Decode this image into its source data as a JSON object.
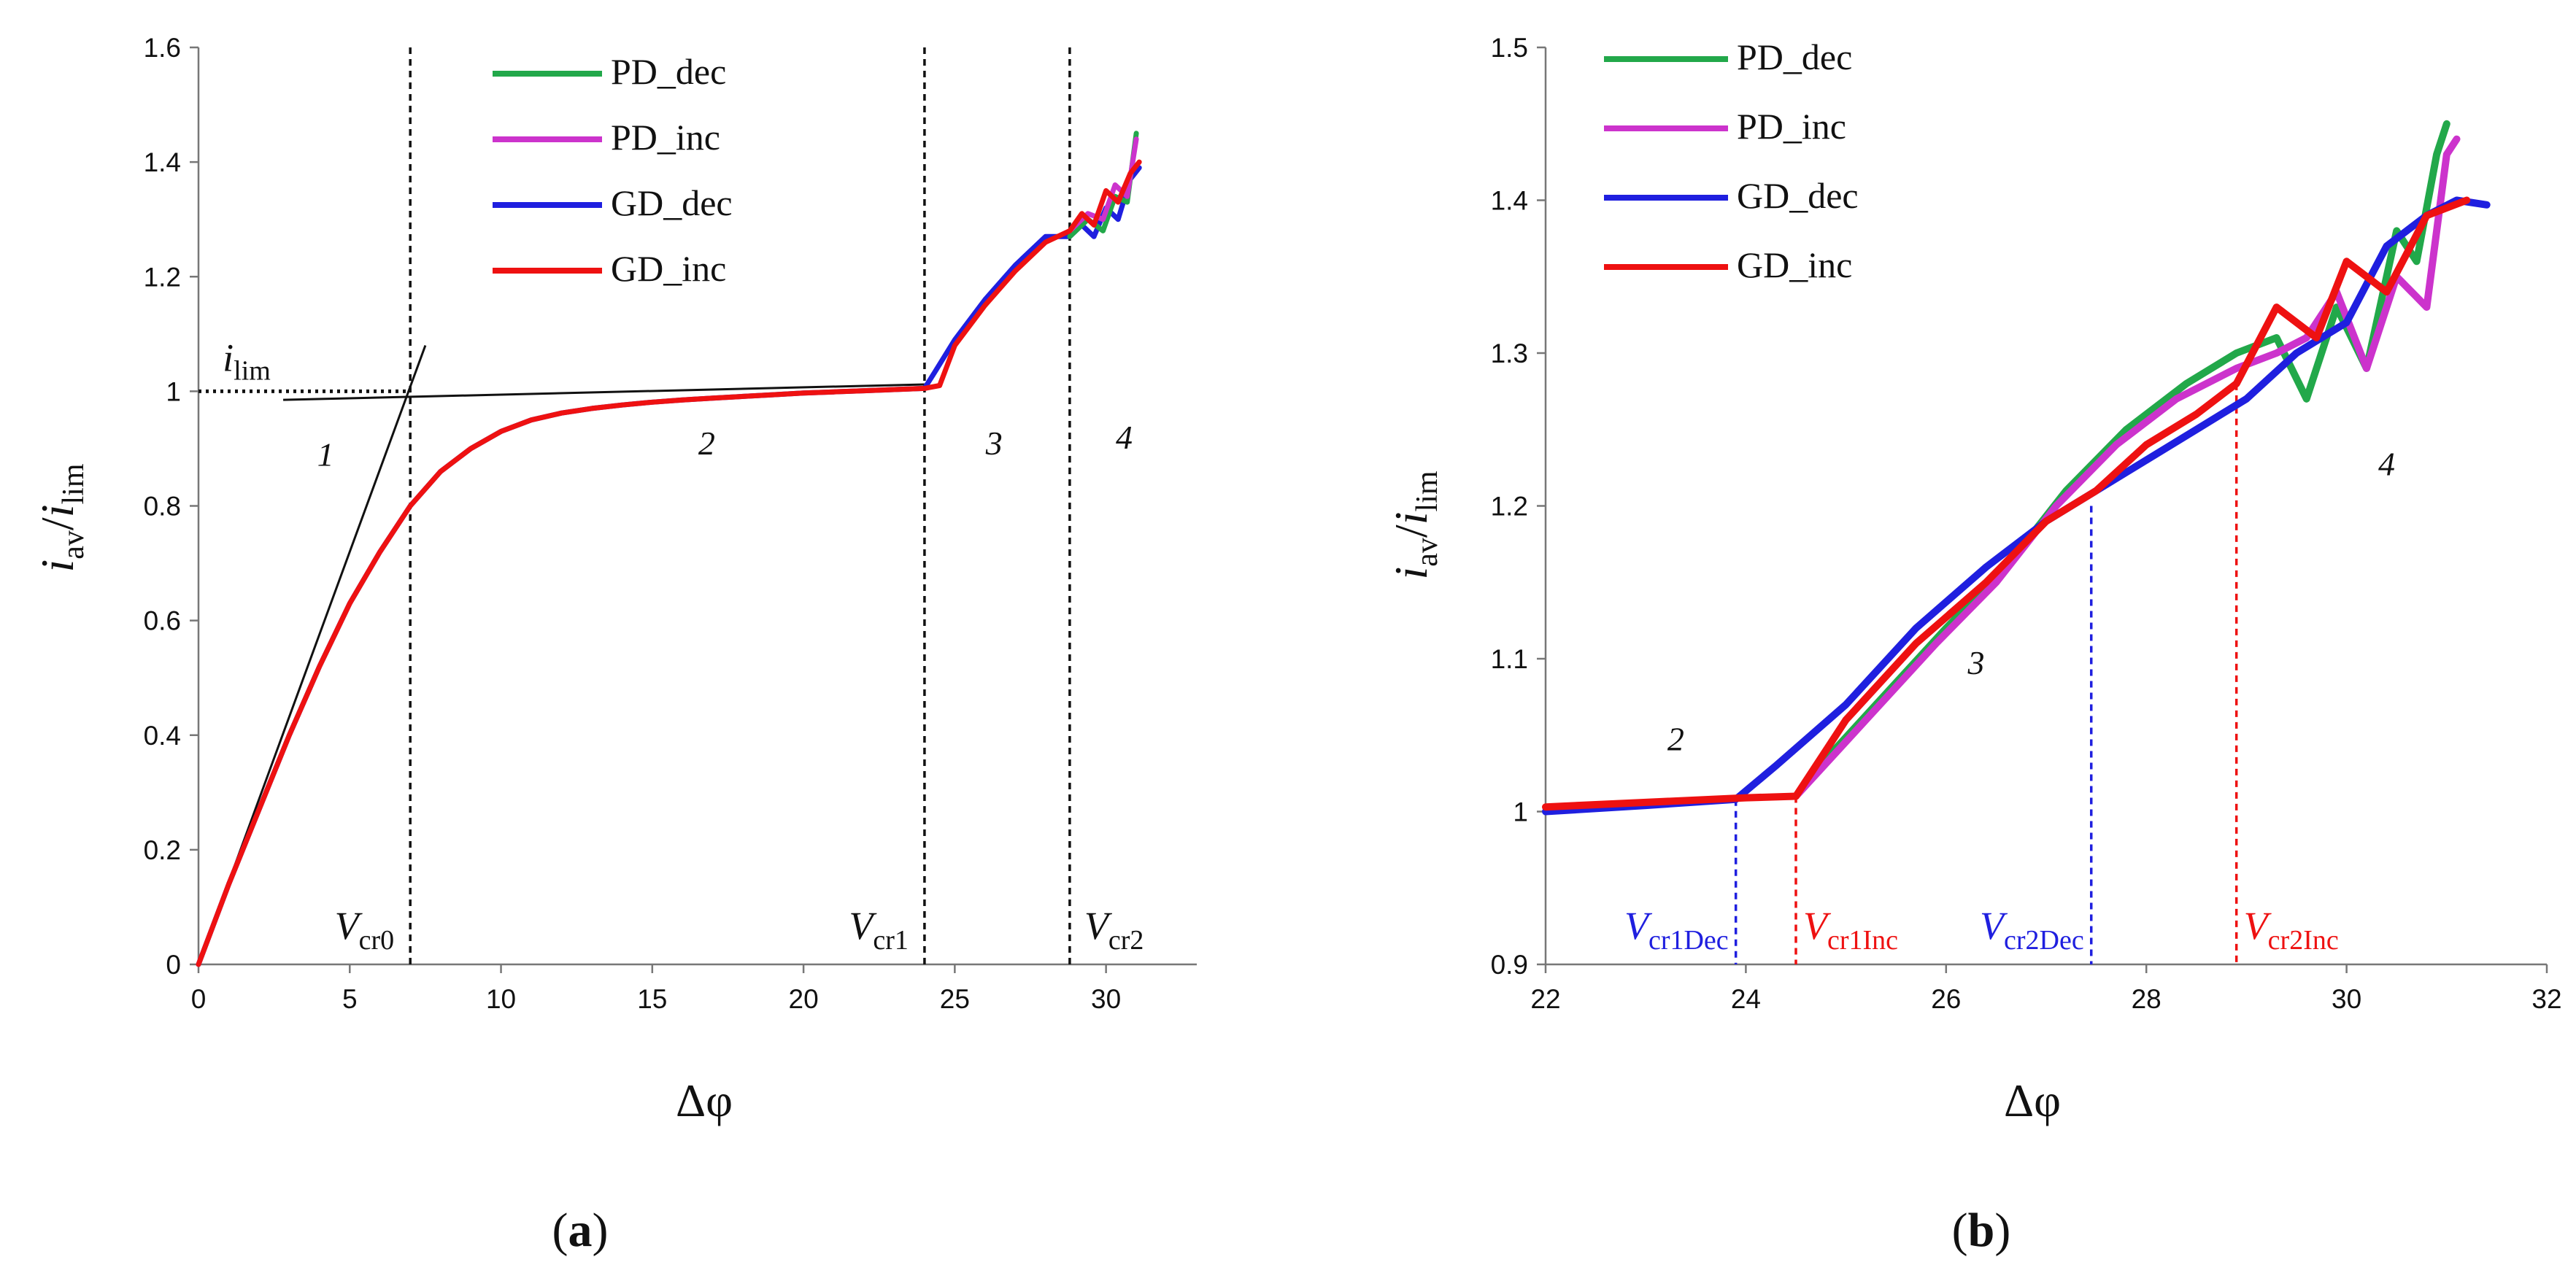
{
  "chart_data": [
    {
      "panel": "a",
      "type": "line",
      "caption": "a",
      "xlabel": "Δφ",
      "ylabel": {
        "main": "i",
        "main_sub": "av",
        "slash": "/",
        "den": "i",
        "den_sub": "lim"
      },
      "xlim": [
        0,
        33
      ],
      "ylim": [
        0,
        1.6
      ],
      "xticks": [
        0,
        5,
        10,
        15,
        20,
        25,
        30
      ],
      "yticks": [
        0,
        0.2,
        0.4,
        0.6,
        0.8,
        1,
        1.2,
        1.4,
        1.6
      ],
      "ytick_labels": [
        "0",
        "0.2",
        "0.4",
        "0.6",
        "0.8",
        "1",
        "1.2",
        "1.4",
        "1.6"
      ],
      "legend": [
        {
          "name": "PD_dec",
          "color": "#22a84a"
        },
        {
          "name": "PD_inc",
          "color": "#cc33cc"
        },
        {
          "name": "GD_dec",
          "color": "#1f1fdf"
        },
        {
          "name": "GD_inc",
          "color": "#ee1111"
        }
      ],
      "series": [
        {
          "name": "GD_dec",
          "color": "#1f1fdf",
          "x": [
            0,
            1,
            2,
            3,
            4,
            5,
            6,
            7,
            8,
            9,
            10,
            11,
            12,
            13,
            14,
            15,
            16,
            17,
            18,
            19,
            20,
            21,
            22,
            23,
            24,
            24.3,
            25,
            26,
            27,
            28,
            28.8,
            29.2,
            29.6,
            30,
            30.4,
            30.8,
            31.1
          ],
          "y": [
            0,
            0.14,
            0.27,
            0.4,
            0.52,
            0.63,
            0.72,
            0.8,
            0.86,
            0.9,
            0.93,
            0.95,
            0.962,
            0.97,
            0.976,
            0.981,
            0.985,
            0.988,
            0.991,
            0.994,
            0.997,
            0.999,
            1.001,
            1.003,
            1.005,
            1.03,
            1.09,
            1.16,
            1.22,
            1.27,
            1.27,
            1.29,
            1.27,
            1.32,
            1.3,
            1.37,
            1.39
          ]
        },
        {
          "name": "GD_inc",
          "color": "#ee1111",
          "x": [
            0,
            1,
            2,
            3,
            4,
            5,
            6,
            7,
            8,
            9,
            10,
            11,
            12,
            13,
            14,
            15,
            16,
            17,
            18,
            19,
            20,
            21,
            22,
            23,
            24,
            24.5,
            25,
            26,
            27,
            28,
            28.8,
            29.2,
            29.6,
            30,
            30.4,
            30.8,
            31.1
          ],
          "y": [
            0,
            0.14,
            0.27,
            0.4,
            0.52,
            0.63,
            0.72,
            0.8,
            0.86,
            0.9,
            0.93,
            0.95,
            0.962,
            0.97,
            0.976,
            0.981,
            0.985,
            0.988,
            0.991,
            0.994,
            0.997,
            0.999,
            1.001,
            1.003,
            1.005,
            1.01,
            1.08,
            1.15,
            1.21,
            1.26,
            1.28,
            1.31,
            1.29,
            1.35,
            1.33,
            1.38,
            1.4
          ]
        },
        {
          "name": "PD_dec",
          "color": "#22a84a",
          "x": [
            28.8,
            29.4,
            29.9,
            30.3,
            30.7,
            31.0
          ],
          "y": [
            1.27,
            1.3,
            1.28,
            1.34,
            1.33,
            1.45
          ]
        },
        {
          "name": "PD_inc",
          "color": "#cc33cc",
          "x": [
            28.8,
            29.4,
            29.9,
            30.3,
            30.7,
            31.0
          ],
          "y": [
            1.28,
            1.31,
            1.3,
            1.36,
            1.34,
            1.44
          ]
        }
      ],
      "tangent_lines": [
        {
          "x": [
            0,
            7.5
          ],
          "y": [
            0,
            1.08
          ]
        },
        {
          "x": [
            2.8,
            24.0
          ],
          "y": [
            0.985,
            1.012
          ]
        }
      ],
      "ilim_line": {
        "y": 1,
        "x": [
          0,
          7
        ],
        "label_main": "i",
        "label_sub": "lim"
      },
      "vlines": [
        {
          "x": 7.0,
          "label": "V",
          "sub": "cr0"
        },
        {
          "x": 24.0,
          "label": "V",
          "sub": "cr1"
        },
        {
          "x": 28.8,
          "label": "V",
          "sub": "cr2"
        }
      ],
      "regions": [
        {
          "label": "1",
          "x": 4.2,
          "y": 0.87
        },
        {
          "label": "2",
          "x": 16.8,
          "y": 0.89
        },
        {
          "label": "3",
          "x": 26.3,
          "y": 0.89
        },
        {
          "label": "4",
          "x": 30.6,
          "y": 0.9
        }
      ]
    },
    {
      "panel": "b",
      "type": "line",
      "caption": "b",
      "xlabel": "Δφ",
      "ylabel": {
        "main": "i",
        "main_sub": "av",
        "slash": "/",
        "den": "i",
        "den_sub": "lim"
      },
      "xlim": [
        22,
        32
      ],
      "ylim": [
        0.9,
        1.5
      ],
      "xticks": [
        22,
        24,
        26,
        28,
        30,
        32
      ],
      "yticks": [
        0.9,
        1.0,
        1.1,
        1.2,
        1.3,
        1.4,
        1.5
      ],
      "ytick_labels": [
        "0.9",
        "1",
        "1.1",
        "1.2",
        "1.3",
        "1.4",
        "1.5"
      ],
      "legend": [
        {
          "name": "PD_dec",
          "color": "#22a84a"
        },
        {
          "name": "PD_inc",
          "color": "#cc33cc"
        },
        {
          "name": "GD_dec",
          "color": "#1f1fdf"
        },
        {
          "name": "GD_inc",
          "color": "#ee1111"
        }
      ],
      "series": [
        {
          "name": "PD_dec",
          "color": "#22a84a",
          "x": [
            24.6,
            25.3,
            26.0,
            26.6,
            27.2,
            27.8,
            28.4,
            28.9,
            29.3,
            29.6,
            29.9,
            30.2,
            30.5,
            30.7,
            30.9,
            31.0
          ],
          "y": [
            1.02,
            1.07,
            1.12,
            1.16,
            1.21,
            1.25,
            1.28,
            1.3,
            1.31,
            1.27,
            1.33,
            1.29,
            1.38,
            1.36,
            1.43,
            1.45
          ]
        },
        {
          "name": "PD_inc",
          "color": "#cc33cc",
          "x": [
            24.5,
            25.2,
            25.9,
            26.5,
            27.1,
            27.7,
            28.3,
            28.9,
            29.3,
            29.6,
            29.9,
            30.2,
            30.5,
            30.8,
            31.0,
            31.1
          ],
          "y": [
            1.01,
            1.06,
            1.11,
            1.15,
            1.2,
            1.24,
            1.27,
            1.29,
            1.3,
            1.31,
            1.34,
            1.29,
            1.35,
            1.33,
            1.43,
            1.44
          ]
        },
        {
          "name": "GD_dec",
          "color": "#1f1fdf",
          "x": [
            22.0,
            23.0,
            23.9,
            24.3,
            25.0,
            25.7,
            26.4,
            27.0,
            27.5,
            28.0,
            28.5,
            29.0,
            29.5,
            30.0,
            30.4,
            30.8,
            31.1,
            31.4
          ],
          "y": [
            1.0,
            1.004,
            1.008,
            1.03,
            1.07,
            1.12,
            1.16,
            1.19,
            1.21,
            1.23,
            1.25,
            1.27,
            1.3,
            1.32,
            1.37,
            1.39,
            1.4,
            1.397
          ]
        },
        {
          "name": "GD_inc",
          "color": "#ee1111",
          "x": [
            22.0,
            23.0,
            24.0,
            24.5,
            25.0,
            25.7,
            26.4,
            27.0,
            27.5,
            28.0,
            28.5,
            28.9,
            29.3,
            29.7,
            30.0,
            30.4,
            30.8,
            31.2
          ],
          "y": [
            1.003,
            1.006,
            1.009,
            1.01,
            1.06,
            1.11,
            1.15,
            1.19,
            1.21,
            1.24,
            1.26,
            1.28,
            1.33,
            1.31,
            1.36,
            1.34,
            1.39,
            1.4
          ]
        }
      ],
      "vlines": [
        {
          "x": 23.9,
          "y_top": 1.008,
          "color": "#1f1fdf",
          "label": "V",
          "sub": "cr1Dec"
        },
        {
          "x": 24.5,
          "y_top": 1.01,
          "color": "#ee1111",
          "label": "V",
          "sub": "cr1Inc"
        },
        {
          "x": 27.45,
          "y_top": 1.2,
          "color": "#1f1fdf",
          "label": "V",
          "sub": "cr2Dec"
        },
        {
          "x": 28.9,
          "y_top": 1.28,
          "color": "#ee1111",
          "label": "V",
          "sub": "cr2Inc"
        }
      ],
      "regions": [
        {
          "label": "2",
          "x": 23.3,
          "y": 1.04
        },
        {
          "label": "3",
          "x": 26.3,
          "y": 1.09
        },
        {
          "label": "4",
          "x": 30.4,
          "y": 1.22
        }
      ]
    }
  ]
}
